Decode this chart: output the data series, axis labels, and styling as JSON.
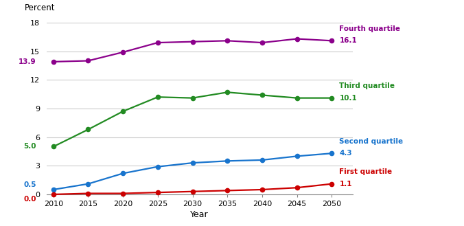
{
  "years": [
    2010,
    2015,
    2020,
    2025,
    2030,
    2035,
    2040,
    2045,
    2050
  ],
  "fourth_quartile": [
    13.9,
    14.0,
    14.9,
    15.9,
    16.0,
    16.1,
    15.9,
    16.3,
    16.1
  ],
  "third_quartile": [
    5.0,
    6.8,
    8.7,
    10.2,
    10.1,
    10.7,
    10.4,
    10.1,
    10.1
  ],
  "second_quartile": [
    0.5,
    1.1,
    2.2,
    2.9,
    3.3,
    3.5,
    3.6,
    4.0,
    4.3
  ],
  "first_quartile": [
    0.0,
    0.1,
    0.1,
    0.2,
    0.3,
    0.4,
    0.5,
    0.7,
    1.1
  ],
  "colors": {
    "fourth": "#8B008B",
    "third": "#228B22",
    "second": "#1874CD",
    "first": "#CC0000"
  },
  "xlabel": "Year",
  "ylabel": "Percent",
  "ylim": [
    0,
    18
  ],
  "yticks": [
    0,
    3,
    6,
    9,
    12,
    15,
    18
  ],
  "xticks": [
    2010,
    2015,
    2020,
    2025,
    2030,
    2035,
    2040,
    2045,
    2050
  ],
  "labels": {
    "fourth": "Fourth quartile",
    "third": "Third quartile",
    "second": "Second quartile",
    "first": "First quartile"
  },
  "start_labels": {
    "fourth": "13.9",
    "third": "5.0",
    "second": "0.5",
    "first": "0.0"
  },
  "end_labels": {
    "fourth": "16.1",
    "third": "10.1",
    "second": "4.3",
    "first": "1.1"
  },
  "background_color": "#ffffff",
  "grid_color": "#cccccc",
  "line_width": 1.6,
  "marker_size": 4.5
}
